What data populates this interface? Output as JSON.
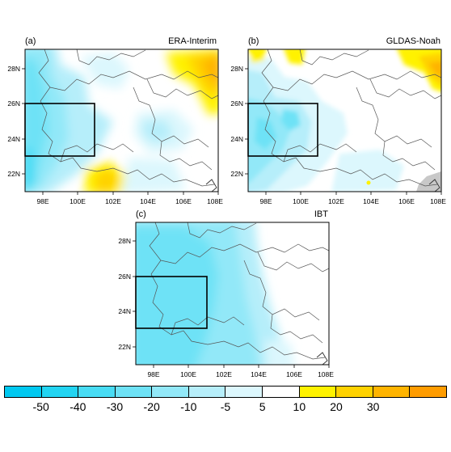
{
  "panels": [
    {
      "id": "a",
      "label": "(a)",
      "title": "ERA-Interim"
    },
    {
      "id": "b",
      "label": "(b)",
      "title": "GLDAS-Noah"
    },
    {
      "id": "c",
      "label": "(c)",
      "title": "IBT"
    }
  ],
  "lat_ticks": [
    "28N",
    "26N",
    "24N",
    "22N"
  ],
  "lon_ticks": [
    "98E",
    "100E",
    "102E",
    "104E",
    "106E",
    "108E"
  ],
  "colorbar": {
    "colors": [
      "#00c8f0",
      "#22d4f2",
      "#48dcf4",
      "#6ee2f6",
      "#92e8f8",
      "#b6eefa",
      "#dcf7fd",
      "#ffffff",
      "#fff200",
      "#ffd200",
      "#ffb400",
      "#ff9c00"
    ],
    "labels": [
      "-50",
      "-40",
      "-30",
      "-20",
      "-10",
      "-5",
      "5",
      "10",
      "20",
      "30"
    ]
  },
  "colors": {
    "land_default": "#ffffff",
    "missing": "#c8c8c8",
    "border": "#555555"
  }
}
